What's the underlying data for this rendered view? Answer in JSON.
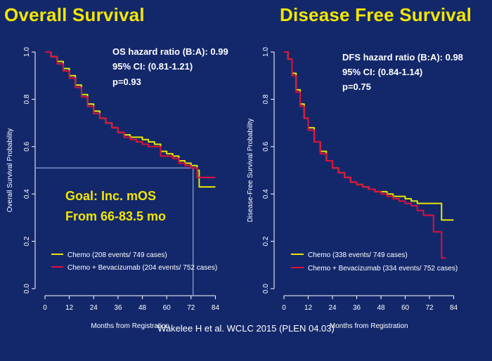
{
  "titles": {
    "left": "Overall Survival",
    "right": "Disease Free Survival"
  },
  "citation": "Wakelee H et al. WCLC 2015 (PLEN 04.03)",
  "colors": {
    "background": "#13286b",
    "title": "#f3e600",
    "chemo": "#e8e800",
    "bev": "#e0103a",
    "text": "#ffffff",
    "goal_line": "#8ea6d6"
  },
  "chart_data": [
    {
      "type": "line",
      "title": "Overall Survival",
      "xlabel": "Months from Registration",
      "ylabel": "Overall Survival Probability",
      "xticks": [
        "0",
        "12",
        "24",
        "36",
        "48",
        "60",
        "72",
        "84"
      ],
      "yticks": [
        "0.0",
        "0.2",
        "0.4",
        "0.6",
        "0.8",
        "1.0"
      ],
      "xlim": [
        0,
        88
      ],
      "ylim": [
        0,
        1.0
      ],
      "stats": [
        "OS hazard ratio (B:A): 0.99",
        "95% CI: (0.81-1.21)",
        "p=0.93"
      ],
      "annotation": [
        "Goal: Inc. mOS",
        "From 66-83.5 mo"
      ],
      "goal_line": {
        "y": 0.51,
        "x_end": 73
      },
      "legend_position": "bottom-left",
      "series": [
        {
          "name": "Chemo (208 events/ 749 cases)",
          "x": [
            0,
            3,
            6,
            9,
            12,
            15,
            18,
            21,
            24,
            27,
            30,
            33,
            36,
            39,
            42,
            45,
            48,
            51,
            54,
            57,
            60,
            63,
            66,
            69,
            72,
            75,
            76,
            78,
            84
          ],
          "y": [
            1.0,
            0.98,
            0.96,
            0.93,
            0.9,
            0.86,
            0.82,
            0.78,
            0.75,
            0.72,
            0.7,
            0.68,
            0.66,
            0.65,
            0.64,
            0.64,
            0.63,
            0.62,
            0.61,
            0.58,
            0.57,
            0.56,
            0.54,
            0.53,
            0.52,
            0.5,
            0.43,
            0.43,
            0.43
          ]
        },
        {
          "name": "Chemo + Bevacizumab (204 events/ 752 cases)",
          "x": [
            0,
            3,
            6,
            9,
            12,
            15,
            18,
            21,
            24,
            27,
            30,
            33,
            36,
            39,
            42,
            45,
            48,
            51,
            54,
            57,
            60,
            63,
            66,
            69,
            72,
            74,
            75,
            78,
            84
          ],
          "y": [
            1.0,
            0.98,
            0.95,
            0.92,
            0.89,
            0.85,
            0.81,
            0.77,
            0.74,
            0.72,
            0.7,
            0.68,
            0.66,
            0.64,
            0.63,
            0.62,
            0.61,
            0.6,
            0.6,
            0.56,
            0.56,
            0.55,
            0.53,
            0.52,
            0.51,
            0.51,
            0.47,
            0.47,
            0.47
          ]
        }
      ]
    },
    {
      "type": "line",
      "title": "Disease Free Survival",
      "xlabel": "Months from Registration",
      "ylabel": "Disease-Free Survival Probability",
      "xticks": [
        "0",
        "12",
        "24",
        "36",
        "48",
        "60",
        "72",
        "84"
      ],
      "yticks": [
        "0.0",
        "0.2",
        "0.4",
        "0.6",
        "0.8",
        "1.0"
      ],
      "xlim": [
        0,
        88
      ],
      "ylim": [
        0,
        1.0
      ],
      "stats": [
        "DFS hazard ratio (B:A): 0.98",
        "95% CI: (0.84-1.14)",
        "p=0.75"
      ],
      "legend_position": "bottom-left",
      "series": [
        {
          "name": "Chemo (338 events/ 749 cases)",
          "x": [
            0,
            2,
            4,
            6,
            8,
            10,
            12,
            15,
            18,
            21,
            24,
            27,
            30,
            33,
            36,
            39,
            42,
            45,
            48,
            51,
            54,
            57,
            60,
            63,
            66,
            69,
            72,
            75,
            78,
            84
          ],
          "y": [
            1.0,
            0.97,
            0.91,
            0.84,
            0.78,
            0.72,
            0.68,
            0.62,
            0.58,
            0.54,
            0.51,
            0.49,
            0.47,
            0.45,
            0.44,
            0.43,
            0.42,
            0.41,
            0.41,
            0.4,
            0.39,
            0.39,
            0.38,
            0.37,
            0.36,
            0.36,
            0.36,
            0.36,
            0.29,
            0.29
          ]
        },
        {
          "name": "Chemo + Bevacizumab (334 events/ 752 cases)",
          "x": [
            0,
            2,
            4,
            6,
            8,
            10,
            12,
            15,
            18,
            21,
            24,
            27,
            30,
            33,
            36,
            39,
            42,
            45,
            48,
            51,
            54,
            57,
            60,
            63,
            66,
            69,
            72,
            74,
            76,
            78,
            80
          ],
          "y": [
            1.0,
            0.97,
            0.9,
            0.83,
            0.77,
            0.72,
            0.67,
            0.62,
            0.57,
            0.54,
            0.51,
            0.49,
            0.47,
            0.45,
            0.44,
            0.43,
            0.42,
            0.41,
            0.4,
            0.39,
            0.38,
            0.37,
            0.36,
            0.35,
            0.33,
            0.31,
            0.31,
            0.24,
            0.24,
            0.13,
            0.13
          ]
        }
      ]
    }
  ]
}
